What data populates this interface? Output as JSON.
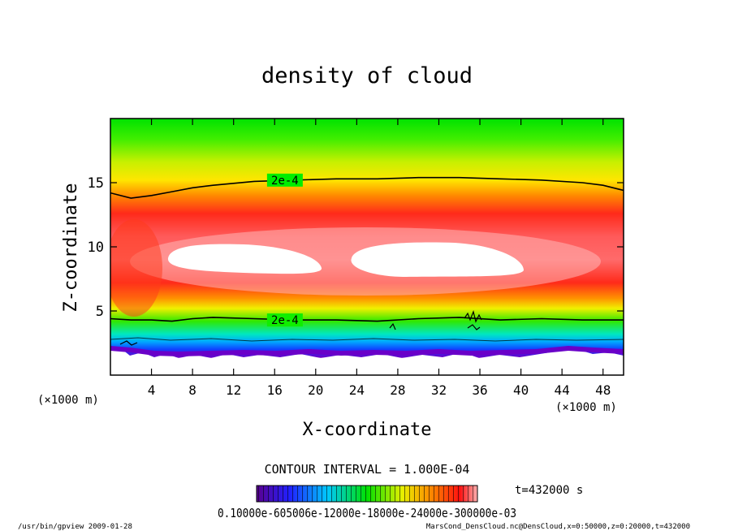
{
  "chart_data": {
    "type": "heatmap",
    "title": "density of cloud",
    "xlabel": "X-coordinate",
    "ylabel": "Z-coordinate",
    "x_unit": "(×1000 m)",
    "y_unit": "(×1000 m)",
    "xlim": [
      0,
      50
    ],
    "ylim": [
      0,
      20
    ],
    "x_ticks": [
      4,
      8,
      12,
      16,
      20,
      24,
      28,
      32,
      36,
      40,
      44,
      48
    ],
    "y_ticks": [
      5,
      10,
      15
    ],
    "contour_interval_text": "CONTOUR INTERVAL = 1.000E-04",
    "contour_labels": [
      {
        "text": "2e-4",
        "x": 17,
        "z": 15.2
      },
      {
        "text": "2e-4",
        "x": 17,
        "z": 4.3
      }
    ],
    "contour_2e4_upper": {
      "x": [
        0,
        2,
        4,
        6,
        8,
        10,
        14,
        18,
        22,
        26,
        30,
        34,
        38,
        42,
        46,
        48,
        50
      ],
      "z": [
        14.2,
        13.8,
        14.0,
        14.3,
        14.6,
        14.8,
        15.1,
        15.2,
        15.3,
        15.3,
        15.4,
        15.4,
        15.3,
        15.2,
        15.0,
        14.8,
        14.4
      ]
    },
    "contour_2e4_lower": {
      "x": [
        0,
        2,
        4,
        6,
        8,
        10,
        14,
        18,
        22,
        26,
        30,
        34,
        38,
        42,
        46,
        50
      ],
      "z": [
        4.4,
        4.3,
        4.3,
        4.2,
        4.4,
        4.5,
        4.4,
        4.3,
        4.3,
        4.2,
        4.4,
        4.5,
        4.3,
        4.4,
        4.3,
        4.3
      ]
    },
    "colorbar_labels": "0.10000e-605006e-12000e-18000e-24000e-300000e-03",
    "time_label": "t=432000 s",
    "footer_left": "/usr/bin/gpview  2009-01-28",
    "footer_right": "MarsCond_DensCloud.nc@DensCloud,x=0:50000,z=0:20000,t=432000",
    "colors": {
      "violet": "#6a00c8",
      "blue": "#1050ff",
      "cyan": "#00d8ff",
      "green": "#00ee00",
      "yellow": "#ffee00",
      "red": "#ff1a1a",
      "pink": "#ffc8c8"
    }
  }
}
